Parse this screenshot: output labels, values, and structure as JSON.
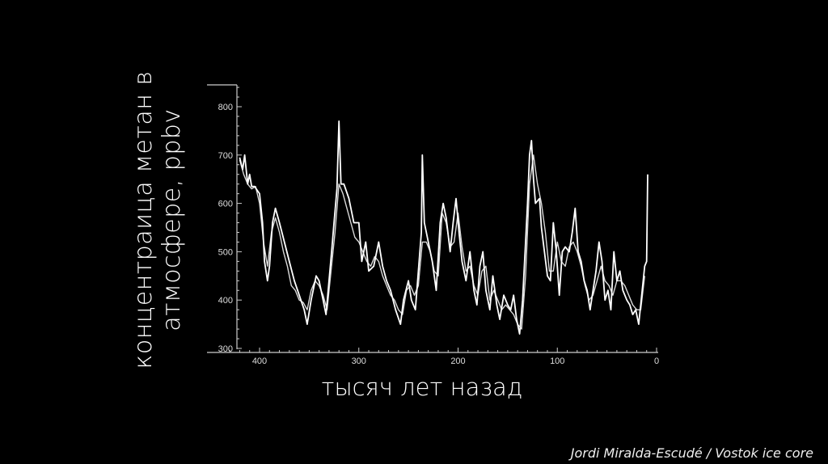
{
  "chart_data": {
    "type": "line",
    "xlabel": "тысяч лет назад",
    "ylabel_lines": [
      "концентраица метан в",
      "атмосфере, ppbv"
    ],
    "xlim": [
      430,
      0
    ],
    "ylim": [
      295,
      845
    ],
    "x_ticks": [
      400,
      300,
      200,
      100,
      0
    ],
    "y_ticks": [
      300,
      400,
      500,
      600,
      700,
      800
    ],
    "grid": false,
    "line_color": "#ffffff",
    "background": "#000000",
    "series": [
      {
        "x": [
          420,
          417,
          415,
          412,
          410,
          408,
          405,
          400,
          397,
          395,
          392,
          390,
          387,
          384,
          380,
          375,
          370,
          365,
          360,
          355,
          352,
          348,
          343,
          340,
          336,
          333,
          330,
          327,
          325,
          322,
          320,
          318,
          315,
          310,
          305,
          300,
          297,
          293,
          290,
          285,
          280,
          276,
          272,
          268,
          263,
          258,
          255,
          250,
          247,
          243,
          240,
          237,
          236,
          234,
          230,
          226,
          222,
          218,
          215,
          212,
          208,
          205,
          202,
          199,
          196,
          192,
          188,
          184,
          181,
          178,
          175,
          172,
          168,
          165,
          161,
          158,
          154,
          150,
          147,
          144,
          141,
          138,
          135,
          132,
          130,
          128,
          126,
          124,
          122,
          118,
          116,
          113,
          110,
          107,
          104,
          101,
          98,
          95,
          92,
          88,
          85,
          82,
          79,
          76,
          73,
          70,
          67,
          64,
          61,
          58,
          55,
          52,
          49,
          46,
          43,
          40,
          37,
          34,
          30,
          27,
          24,
          21,
          18,
          15,
          12,
          10,
          9
        ],
        "y": [
          695,
          670,
          700,
          640,
          660,
          635,
          635,
          620,
          560,
          480,
          440,
          470,
          560,
          590,
          560,
          520,
          480,
          440,
          410,
          380,
          350,
          400,
          450,
          440,
          400,
          370,
          440,
          510,
          560,
          630,
          770,
          640,
          640,
          610,
          560,
          560,
          480,
          520,
          460,
          470,
          520,
          470,
          440,
          420,
          380,
          350,
          400,
          440,
          400,
          380,
          460,
          540,
          700,
          560,
          520,
          480,
          420,
          560,
          600,
          570,
          500,
          560,
          610,
          540,
          480,
          440,
          500,
          420,
          390,
          470,
          500,
          420,
          380,
          450,
          390,
          360,
          410,
          390,
          380,
          410,
          360,
          330,
          400,
          520,
          600,
          700,
          730,
          650,
          600,
          610,
          550,
          500,
          450,
          440,
          560,
          500,
          410,
          500,
          510,
          500,
          540,
          590,
          500,
          480,
          440,
          420,
          380,
          420,
          460,
          520,
          480,
          400,
          420,
          380,
          500,
          440,
          460,
          420,
          400,
          390,
          370,
          380,
          350,
          410,
          470,
          480,
          660
        ]
      },
      {
        "x": [
          420,
          416,
          412,
          408,
          404,
          400,
          396,
          392,
          388,
          384,
          380,
          376,
          372,
          368,
          364,
          360,
          356,
          352,
          348,
          344,
          340,
          336,
          332,
          328,
          324,
          320,
          316,
          312,
          308,
          304,
          300,
          296,
          292,
          288,
          284,
          280,
          276,
          272,
          268,
          264,
          260,
          256,
          252,
          248,
          244,
          240,
          236,
          232,
          228,
          224,
          220,
          216,
          212,
          208,
          204,
          200,
          196,
          192,
          188,
          184,
          180,
          176,
          172,
          168,
          164,
          160,
          156,
          152,
          148,
          144,
          140,
          136,
          132,
          128,
          124,
          120,
          116,
          112,
          108,
          104,
          100,
          96,
          92,
          88,
          84,
          80,
          76,
          72,
          68,
          64,
          60,
          56,
          52,
          48,
          44,
          40,
          36,
          32,
          28,
          24,
          20,
          16,
          12
        ],
        "y": [
          690,
          660,
          640,
          630,
          635,
          600,
          520,
          470,
          540,
          570,
          540,
          500,
          470,
          430,
          420,
          400,
          395,
          380,
          420,
          440,
          430,
          410,
          380,
          460,
          540,
          640,
          620,
          590,
          560,
          530,
          520,
          500,
          480,
          470,
          490,
          480,
          450,
          430,
          410,
          400,
          380,
          370,
          420,
          430,
          410,
          430,
          520,
          520,
          500,
          460,
          450,
          580,
          560,
          510,
          520,
          580,
          510,
          460,
          470,
          430,
          410,
          460,
          470,
          400,
          420,
          400,
          380,
          390,
          380,
          370,
          350,
          340,
          450,
          640,
          700,
          640,
          600,
          540,
          460,
          460,
          520,
          480,
          470,
          510,
          520,
          500,
          470,
          430,
          400,
          410,
          440,
          470,
          440,
          430,
          410,
          440,
          440,
          430,
          410,
          390,
          380,
          380,
          450
        ]
      }
    ]
  }
}
